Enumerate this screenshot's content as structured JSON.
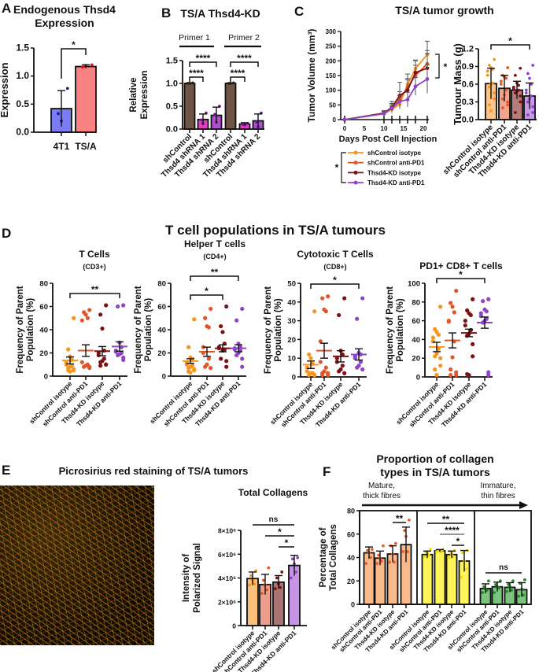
{
  "panel_labels": [
    "A",
    "B",
    "C",
    "D",
    "E",
    "F"
  ],
  "figure": {
    "D_title": "T cell populations in TS/A tumours",
    "E_title": "Picrosirius red staining of TS/A tumors"
  },
  "chart_data": [
    {
      "id": "A",
      "type": "bar",
      "title": [
        "Endogenous Thsd4",
        "Expression"
      ],
      "ylabel": [
        "Expression"
      ],
      "ylim": [
        0,
        1.5
      ],
      "yticks": [
        0,
        0.5,
        1.0,
        1.5
      ],
      "ytick_labels": [
        "0.0",
        "0.5",
        "1.0",
        "1.5"
      ],
      "categories": [
        "4T1",
        "TS/A"
      ],
      "values": [
        0.42,
        1.17
      ],
      "errors": [
        0.32,
        0.03
      ],
      "points": [
        [
          0.78,
          0.33,
          0.2
        ],
        [
          1.2,
          1.16,
          1.19
        ]
      ],
      "bar_colors": [
        "#7b7cf5",
        "#f98383"
      ],
      "point_colors": [
        "#1d1d8c",
        "#e8101a"
      ],
      "significance": [
        {
          "label": "*",
          "from": 0,
          "to": 1
        }
      ]
    },
    {
      "id": "B",
      "type": "bar",
      "title": [
        "TS/A Thsd4-KD"
      ],
      "ylabel": [
        "Relative",
        "Expression"
      ],
      "ylim": [
        0,
        1.5
      ],
      "yticks": [
        0,
        0.5,
        1.0,
        1.5
      ],
      "ytick_labels": [
        "0.0",
        "0.5",
        "1.0",
        "1.5"
      ],
      "categories": [
        "shControl",
        "Thsd4 shRNA 1",
        "Thsd4 shRNA 2",
        "shControl",
        "Thsd4 shRNA 1",
        "Thsd4 shRNA 2"
      ],
      "groups": [
        "Primer 1",
        "Primer 2"
      ],
      "values": [
        1.0,
        0.21,
        0.3,
        1.0,
        0.11,
        0.18
      ],
      "errors": [
        0.01,
        0.12,
        0.18,
        0.01,
        0.03,
        0.15
      ],
      "points": [
        [
          1.01,
          1.0,
          1.0
        ],
        [
          0.35,
          0.2,
          0.12
        ],
        [
          0.5,
          0.32,
          0.15
        ],
        [
          1.01,
          1.0,
          1.0
        ],
        [
          0.12,
          0.1,
          0.09
        ],
        [
          0.35,
          0.15,
          0.05
        ]
      ],
      "bar_colors": [
        "#6e5546",
        "#e040c0",
        "#b050d0",
        "#6e5546",
        "#e040c0",
        "#b050d0"
      ],
      "point_colors": [
        "#3a2a20",
        "#7a1d8a",
        "#6a1d90",
        "#3a2a20",
        "#7a1d8a",
        "#6a1d90"
      ],
      "significance": [
        {
          "label": "****",
          "from": 0,
          "to": 2
        },
        {
          "label": "****",
          "from": 0,
          "to": 1
        },
        {
          "label": "****",
          "from": 3,
          "to": 5
        },
        {
          "label": "****",
          "from": 3,
          "to": 4
        }
      ]
    },
    {
      "id": "C",
      "type": "line",
      "title": "TS/A tumor growth",
      "xlabel": "Days Post Cell Injection",
      "ylabel": "Tumor Volume (mm³)",
      "xlim": [
        0,
        22
      ],
      "ylim": [
        0,
        300
      ],
      "xticks": [
        0,
        5,
        10,
        15,
        20
      ],
      "yticks": [
        0,
        50,
        100,
        150,
        200,
        250,
        300
      ],
      "x": [
        0,
        10,
        12,
        14,
        16,
        18,
        21
      ],
      "series": [
        {
          "name": "shControl isotype",
          "color": "#f7941d",
          "values": [
            0,
            20,
            35,
            52,
            120,
            173,
            222
          ],
          "errors": [
            0,
            10,
            12,
            15,
            35,
            30,
            45
          ]
        },
        {
          "name": "shControl anti-PD1",
          "color": "#e0552a",
          "values": [
            0,
            22,
            40,
            70,
            110,
            150,
            190
          ],
          "errors": [
            0,
            8,
            15,
            25,
            30,
            35,
            45
          ]
        },
        {
          "name": "Thsd4-KD isotype",
          "color": "#7b1113",
          "values": [
            0,
            22,
            42,
            82,
            100,
            160,
            175
          ],
          "errors": [
            0,
            8,
            20,
            45,
            35,
            40,
            50
          ]
        },
        {
          "name": "Thsd4-KD anti-PD1",
          "color": "#8e44c9",
          "values": [
            0,
            20,
            38,
            62,
            68,
            113,
            138
          ],
          "errors": [
            0,
            8,
            15,
            20,
            25,
            30,
            48
          ]
        }
      ],
      "significance": [
        {
          "label": "*",
          "between": [
            "shControl isotype",
            "Thsd4-KD anti-PD1"
          ]
        }
      ]
    },
    {
      "id": "Cm",
      "type": "bar",
      "title": [],
      "ylabel": [
        "Tumour Mass (g)"
      ],
      "ylim": [
        0,
        1.2
      ],
      "yticks": [
        0,
        0.3,
        0.6,
        0.9,
        1.2
      ],
      "ytick_labels": [
        "0.0",
        "0.3",
        "0.6",
        "0.9",
        "1.2"
      ],
      "categories": [
        "shControl isotype",
        "shControl anti-PD1",
        "Thsd4-KD isotype",
        "Thsd4-KD anti-PD1"
      ],
      "values": [
        0.61,
        0.53,
        0.5,
        0.4
      ],
      "errors": [
        0.26,
        0.22,
        0.15,
        0.22
      ],
      "points": [
        [
          1.02,
          0.92,
          0.88,
          0.85,
          0.82,
          0.75,
          0.62,
          0.6,
          0.55,
          0.45,
          0.35,
          0.25,
          0.15
        ],
        [
          0.88,
          0.75,
          0.72,
          0.7,
          0.65,
          0.6,
          0.5,
          0.42,
          0.35,
          0.3,
          0.25,
          0.2
        ],
        [
          0.87,
          0.75,
          0.62,
          0.58,
          0.55,
          0.52,
          0.5,
          0.48,
          0.45,
          0.4,
          0.3,
          0.12
        ],
        [
          0.92,
          0.78,
          0.7,
          0.6,
          0.5,
          0.45,
          0.4,
          0.35,
          0.3,
          0.22,
          0.12,
          0.08
        ]
      ],
      "bar_colors": [
        "#fbc58a",
        "#efa590",
        "#b57c7c",
        "#c79ae6"
      ],
      "point_colors": [
        "#f7941d",
        "#e0552a",
        "#7b1113",
        "#8e44c9"
      ],
      "significance": [
        {
          "label": "*",
          "from": 0,
          "to": 3
        }
      ]
    },
    {
      "id": "D1",
      "type": "scatter",
      "title": [
        "T Cells",
        "(CD3+)"
      ],
      "ylabel": [
        "Frequency of Parent",
        "Population (%)"
      ],
      "ylim": [
        0,
        80
      ],
      "yticks": [
        0,
        20,
        40,
        60,
        80
      ],
      "ytick_labels": [
        "0",
        "20",
        "40",
        "60",
        "80"
      ],
      "categories": [
        "shControl isotype",
        "shControl anti-PD1",
        "Thsd4-KD isotype",
        "Thsd4-KD anti-PD1"
      ],
      "values": [
        13.5,
        22,
        21.5,
        25.5
      ],
      "errors": [
        3,
        5,
        4,
        4
      ],
      "points": [
        [
          50,
          23,
          17,
          14,
          12,
          10,
          9,
          8,
          7,
          6,
          5,
          5,
          4
        ],
        [
          57,
          55,
          53,
          50,
          48,
          12,
          10,
          9,
          8,
          8,
          7
        ],
        [
          61,
          53,
          41,
          22,
          20,
          18,
          15,
          13,
          12,
          10,
          10,
          9
        ],
        [
          61,
          60,
          29,
          25,
          22,
          21,
          20,
          19,
          18,
          16,
          14
        ]
      ],
      "point_colors": [
        "#f7941d",
        "#e0552a",
        "#7b1113",
        "#8e44c9"
      ],
      "significance": [
        {
          "label": "**",
          "from": 0,
          "to": 3
        }
      ]
    },
    {
      "id": "D2",
      "type": "scatter",
      "title": [
        "Helper T cells",
        "(CD4+)"
      ],
      "ylabel": [
        "Frequency of Parent",
        "Population (%)"
      ],
      "ylim": [
        0,
        80
      ],
      "yticks": [
        0,
        20,
        40,
        60,
        80
      ],
      "ytick_labels": [
        "0",
        "20",
        "40",
        "60",
        "80"
      ],
      "categories": [
        "shControl isotype",
        "shControl anti-PD1",
        "Thsd4-KD isotype",
        "Thsd4-KD anti-PD1"
      ],
      "values": [
        13,
        21,
        24,
        24
      ],
      "errors": [
        2,
        4,
        3,
        3
      ],
      "points": [
        [
          49,
          25,
          16,
          15,
          12,
          10,
          9,
          8,
          7,
          6,
          5,
          4,
          3
        ],
        [
          58,
          50,
          43,
          42,
          25,
          20,
          15,
          10,
          8,
          7,
          7
        ],
        [
          60,
          43,
          38,
          28,
          25,
          24,
          23,
          22,
          15,
          13,
          8
        ],
        [
          58,
          48,
          28,
          25,
          24,
          23,
          22,
          20,
          18,
          15,
          8
        ]
      ],
      "point_colors": [
        "#f7941d",
        "#e0552a",
        "#7b1113",
        "#8e44c9"
      ],
      "significance": [
        {
          "label": "**",
          "from": 0,
          "to": 3
        },
        {
          "label": "*",
          "from": 0,
          "to": 2
        }
      ]
    },
    {
      "id": "D3",
      "type": "scatter",
      "title": [
        "Cytotoxic T Cells",
        "(CD8+)"
      ],
      "ylabel": [
        "Frequency of Parent",
        "Population (%)"
      ],
      "ylim": [
        0,
        50
      ],
      "yticks": [
        0,
        10,
        20,
        30,
        40,
        50
      ],
      "ytick_labels": [
        "0",
        "10",
        "20",
        "30",
        "40",
        "50"
      ],
      "categories": [
        "shControl isotype",
        "shControl anti-PD1",
        "Thsd4-KD isotype",
        "Thsd4-KD anti-PD1"
      ],
      "values": [
        6.5,
        14,
        11,
        12
      ],
      "errors": [
        2,
        4,
        3,
        3
      ],
      "points": [
        [
          35,
          12,
          10,
          7,
          5,
          3,
          2,
          2,
          1,
          1,
          1
        ],
        [
          43,
          42,
          36,
          35,
          19,
          8,
          5,
          3,
          2,
          2,
          1,
          1
        ],
        [
          42,
          33,
          14,
          12,
          10,
          8,
          6,
          4,
          3,
          2
        ],
        [
          42,
          31,
          13,
          12,
          11,
          10,
          8,
          6,
          5,
          4
        ]
      ],
      "point_colors": [
        "#f7941d",
        "#e0552a",
        "#7b1113",
        "#8e44c9"
      ],
      "significance": [
        {
          "label": "*",
          "from": 0,
          "to": 3
        }
      ]
    },
    {
      "id": "D4",
      "type": "scatter",
      "title": [
        "PD1+ CD8+ T cells"
      ],
      "ylabel": [
        "Frequency of Parent",
        "Population (%)"
      ],
      "ylim": [
        0,
        100
      ],
      "yticks": [
        0,
        20,
        40,
        60,
        80,
        100
      ],
      "ytick_labels": [
        "0",
        "20",
        "40",
        "60",
        "80",
        "100"
      ],
      "categories": [
        "shControl isotype",
        "shControl anti-PD1",
        "Thsd4-KD isotype",
        "Thsd4-KD anti-PD1"
      ],
      "values": [
        32,
        39,
        47,
        58
      ],
      "errors": [
        5,
        8,
        4,
        6
      ],
      "points": [
        [
          75,
          51,
          48,
          45,
          42,
          38,
          30,
          25,
          22,
          20,
          12,
          8,
          2
        ],
        [
          92,
          79,
          75,
          69,
          60,
          59,
          38,
          21,
          8,
          5,
          2,
          2
        ],
        [
          83,
          71,
          68,
          66,
          60,
          55,
          50,
          46,
          44,
          35,
          22,
          3,
          2
        ],
        [
          83,
          81,
          72,
          70,
          68,
          65,
          62,
          60,
          58,
          5,
          2
        ]
      ],
      "point_colors": [
        "#f7941d",
        "#e0552a",
        "#7b1113",
        "#8e44c9"
      ],
      "significance": [
        {
          "label": "*",
          "from": 0,
          "to": 3
        }
      ]
    },
    {
      "id": "E",
      "type": "bar",
      "title": [
        "Total Collagens"
      ],
      "ylabel": [
        "Intensity of",
        "Polarized Signal"
      ],
      "ylim": [
        0,
        8000000
      ],
      "yticks": [
        0,
        2000000,
        4000000,
        6000000,
        8000000
      ],
      "ytick_labels": [
        "0",
        "2×10⁶",
        "4×10⁶",
        "6×10⁶",
        "8×10⁶"
      ],
      "categories": [
        "shControl isotype",
        "shControl anti-PD1",
        "Thsd4-KD isotype",
        "Thsd4-KD anti-PD1"
      ],
      "values": [
        3950000,
        3450000,
        3650000,
        5050000
      ],
      "errors": [
        550000,
        850000,
        550000,
        850000
      ],
      "points": [
        [
          4600000,
          4200000,
          3800000,
          3500000,
          3400000
        ],
        [
          4850000,
          3800000,
          3400000,
          3000000,
          2700000
        ],
        [
          4500000,
          4000000,
          3500000,
          3200000,
          3100000
        ],
        [
          5700000,
          5600000,
          5200000,
          4500000,
          4000000
        ]
      ],
      "bar_colors": [
        "#fbc07a",
        "#ec9e8c",
        "#a97474",
        "#c595e3"
      ],
      "point_colors": [
        "#f7941d",
        "#e0552a",
        "#7b1113",
        "#8e44c9"
      ],
      "significance": [
        {
          "label": "ns",
          "from": 0,
          "to": 3
        },
        {
          "label": "*",
          "from": 1,
          "to": 3
        },
        {
          "label": "*",
          "from": 2,
          "to": 3
        }
      ]
    },
    {
      "id": "F",
      "type": "bar",
      "title": [
        "Proportion of collagen",
        "types in TS/A tumors"
      ],
      "ylabel": [
        "Percentage of",
        "Total Collagens"
      ],
      "annotations": {
        "left": [
          "Mature,",
          "thick fibres"
        ],
        "right": [
          "Immature,",
          "thin fibres"
        ]
      },
      "ylim": [
        0,
        80
      ],
      "yticks": [
        0,
        20,
        40,
        60,
        80
      ],
      "ytick_labels": [
        "0",
        "20",
        "40",
        "60",
        "80"
      ],
      "categories": [
        "shControl isotype",
        "shControl anti-PD1",
        "Thsd4-KD isotype",
        "Thsd4-KD anti-PD1",
        "shControl isotype",
        "shControl anti-PD1",
        "Thsd4-KD isotype",
        "Thsd4-KD anti-PD1",
        "shControl isotype",
        "shControl anti-PD1",
        "Thsd4-KD isotype",
        "Thsd4-KD anti-PD1"
      ],
      "values": [
        44,
        39.5,
        43,
        51,
        42.5,
        45.8,
        42.5,
        37,
        13.5,
        15,
        14.5,
        12.5
      ],
      "errors": [
        5,
        6,
        7,
        15,
        3,
        1,
        3,
        9,
        4,
        4,
        4,
        6
      ],
      "points": [
        [
          47,
          46,
          44,
          40,
          35
        ],
        [
          50,
          42,
          39,
          37,
          35
        ],
        [
          52,
          50,
          43,
          36,
          36
        ],
        [
          72,
          63,
          58,
          45,
          45
        ],
        [
          47,
          45,
          44,
          42,
          41
        ],
        [
          47,
          46,
          46,
          45,
          45
        ],
        [
          46,
          45,
          43,
          41,
          40
        ],
        [
          46,
          44,
          37,
          30,
          23
        ],
        [
          20,
          15,
          13,
          12,
          10
        ],
        [
          20,
          17,
          15,
          14,
          10
        ],
        [
          20,
          17,
          15,
          12,
          11
        ],
        [
          21,
          18,
          13,
          8,
          7
        ]
      ],
      "bar_colors": [
        "#f9b98a",
        "#f9b98a",
        "#f9b98a",
        "#f9b98a",
        "#fff55a",
        "#fff55a",
        "#fff55a",
        "#fff55a",
        "#7cc47e",
        "#7cc47e",
        "#7cc47e",
        "#7cc47e"
      ],
      "point_colors": [
        "#e8602c",
        "#e8602c",
        "#e8602c",
        "#e8602c",
        "#f0d80c",
        "#f0d80c",
        "#f0d80c",
        "#f0d80c",
        "#1e8c2b",
        "#1e8c2b",
        "#1e8c2b",
        "#1e8c2b"
      ],
      "significance": [
        {
          "label": "**",
          "from": 2,
          "to": 3
        },
        {
          "label": "**",
          "from": 4,
          "to": 7
        },
        {
          "label": "****",
          "from": 5,
          "to": 7
        },
        {
          "label": "*",
          "from": 6,
          "to": 7
        },
        {
          "label": "ns",
          "from": 8,
          "to": 11
        }
      ]
    }
  ]
}
